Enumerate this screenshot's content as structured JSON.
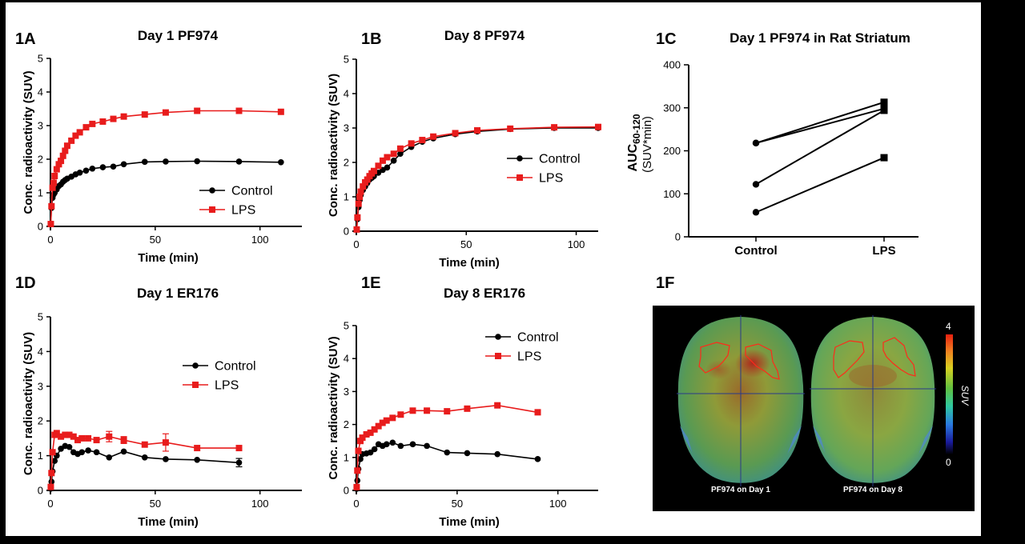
{
  "colors": {
    "control": "#000000",
    "lps": "#e81c1c"
  },
  "panels": {
    "A": {
      "id": "1A",
      "title": "Day 1 PF974"
    },
    "B": {
      "id": "1B",
      "title": "Day 8 PF974"
    },
    "C": {
      "id": "1C",
      "title": "Day 1 PF974 in Rat Striatum"
    },
    "D": {
      "id": "1D",
      "title": "Day 1 ER176"
    },
    "E": {
      "id": "1E",
      "title": "Day 8 ER176"
    },
    "F": {
      "id": "1F",
      "caption_left": "PF974 on Day 1",
      "caption_right": "PF974 on Day 8",
      "colorbar_max": "4",
      "colorbar_min": "0",
      "colorbar_label": "SUV"
    }
  },
  "chart_data": [
    {
      "panel": "1A",
      "type": "line",
      "title": "Day 1 PF974",
      "xlabel": "Time (min)",
      "ylabel": "Conc. radioactivity (SUV)",
      "xlim": [
        0,
        120
      ],
      "ylim": [
        0,
        5
      ],
      "xticks": [
        0,
        50,
        100
      ],
      "yticks": [
        0,
        1,
        2,
        3,
        4,
        5
      ],
      "legend": "center-right",
      "series": [
        {
          "name": "Control",
          "color": "#000000",
          "marker": "circle",
          "x": [
            0.17,
            0.5,
            1,
            1.5,
            2,
            3,
            4,
            5,
            6,
            7,
            8,
            10,
            12,
            14,
            17,
            20,
            25,
            30,
            35,
            45,
            55,
            70,
            90,
            110
          ],
          "y": [
            0.07,
            0.55,
            0.85,
            0.95,
            1.0,
            1.1,
            1.2,
            1.25,
            1.33,
            1.38,
            1.42,
            1.48,
            1.55,
            1.6,
            1.66,
            1.72,
            1.76,
            1.78,
            1.85,
            1.92,
            1.93,
            1.94,
            1.93,
            1.91
          ]
        },
        {
          "name": "LPS",
          "color": "#e81c1c",
          "marker": "square",
          "x": [
            0.17,
            0.5,
            1,
            1.5,
            2,
            3,
            4,
            5,
            6,
            7,
            8,
            10,
            12,
            14,
            17,
            20,
            25,
            30,
            35,
            45,
            55,
            70,
            90,
            110
          ],
          "y": [
            0.07,
            0.6,
            1.15,
            1.3,
            1.5,
            1.7,
            1.85,
            1.95,
            2.1,
            2.25,
            2.4,
            2.55,
            2.7,
            2.8,
            2.95,
            3.05,
            3.12,
            3.2,
            3.27,
            3.33,
            3.39,
            3.44,
            3.44,
            3.41
          ]
        }
      ]
    },
    {
      "panel": "1B",
      "type": "line",
      "title": "Day 8 PF974",
      "xlabel": "Time (min)",
      "ylabel": "Conc. radioactivity (SUV)",
      "xlim": [
        0,
        110
      ],
      "ylim": [
        0,
        5
      ],
      "xticks": [
        0,
        50,
        100
      ],
      "yticks": [
        0,
        1,
        2,
        3,
        4,
        5
      ],
      "legend": "center-right",
      "series": [
        {
          "name": "Control",
          "color": "#000000",
          "marker": "circle",
          "x": [
            0.17,
            0.5,
            1,
            1.5,
            2,
            3,
            4,
            5,
            6,
            7,
            8,
            10,
            12,
            14,
            17,
            20,
            25,
            30,
            35,
            45,
            55,
            70,
            90,
            110
          ],
          "y": [
            0.05,
            0.35,
            0.7,
            0.9,
            1.05,
            1.2,
            1.3,
            1.4,
            1.5,
            1.55,
            1.6,
            1.7,
            1.78,
            1.85,
            2.05,
            2.25,
            2.45,
            2.6,
            2.7,
            2.82,
            2.9,
            2.97,
            3.0,
            3.0
          ]
        },
        {
          "name": "LPS",
          "color": "#e81c1c",
          "marker": "square",
          "x": [
            0.17,
            0.5,
            1,
            1.5,
            2,
            3,
            4,
            5,
            6,
            7,
            8,
            10,
            12,
            14,
            17,
            20,
            25,
            30,
            35,
            45,
            55,
            70,
            90,
            110
          ],
          "y": [
            0.05,
            0.4,
            0.8,
            1.0,
            1.15,
            1.3,
            1.42,
            1.5,
            1.6,
            1.68,
            1.75,
            1.9,
            2.05,
            2.15,
            2.25,
            2.4,
            2.55,
            2.65,
            2.75,
            2.85,
            2.93,
            2.98,
            3.02,
            3.03
          ]
        }
      ]
    },
    {
      "panel": "1C",
      "type": "line",
      "title": "Day 1 PF974 in Rat Striatum",
      "ylabel": "AUC60-120",
      "ylabel_main": "AUC",
      "ylabel_sub": "60-120",
      "ylabel_unit": "(SUV*min)",
      "categories": [
        "Control",
        "LPS"
      ],
      "ylim": [
        0,
        400
      ],
      "yticks": [
        0,
        100,
        200,
        300,
        400
      ],
      "series": [
        {
          "values": [
            218,
            313
          ]
        },
        {
          "values": [
            218,
            298
          ]
        },
        {
          "values": [
            122,
            294
          ]
        },
        {
          "values": [
            57,
            184
          ]
        }
      ]
    },
    {
      "panel": "1D",
      "type": "line",
      "title": "Day 1 ER176",
      "xlabel": "Time (min)",
      "ylabel": "Conc. radioactivity (SUV)",
      "xlim": [
        0,
        120
      ],
      "ylim": [
        0,
        5
      ],
      "xticks": [
        0,
        50,
        100
      ],
      "yticks": [
        0,
        1,
        2,
        3,
        4,
        5
      ],
      "legend": "center-right",
      "series": [
        {
          "name": "Control",
          "color": "#000000",
          "marker": "circle",
          "x": [
            0.17,
            0.5,
            1,
            2,
            3,
            5,
            7,
            9,
            11,
            13,
            15,
            18,
            22,
            28,
            35,
            45,
            55,
            70,
            90
          ],
          "y": [
            0.05,
            0.25,
            0.55,
            0.85,
            1.0,
            1.2,
            1.28,
            1.25,
            1.1,
            1.05,
            1.1,
            1.15,
            1.1,
            0.95,
            1.12,
            0.95,
            0.9,
            0.88,
            0.8
          ],
          "err": [
            0,
            0,
            0,
            0,
            0,
            0,
            0,
            0,
            0,
            0,
            0,
            0,
            0,
            0,
            0,
            0,
            0,
            0,
            0.12
          ]
        },
        {
          "name": "LPS",
          "color": "#e81c1c",
          "marker": "square",
          "x": [
            0.17,
            0.5,
            1,
            2,
            3,
            5,
            7,
            9,
            11,
            13,
            15,
            18,
            22,
            28,
            35,
            45,
            55,
            70,
            90
          ],
          "y": [
            0.1,
            0.5,
            1.1,
            1.6,
            1.65,
            1.55,
            1.6,
            1.6,
            1.55,
            1.45,
            1.5,
            1.5,
            1.45,
            1.55,
            1.45,
            1.32,
            1.38,
            1.22,
            1.22
          ],
          "err": [
            0,
            0,
            0,
            0,
            0,
            0,
            0,
            0,
            0,
            0,
            0,
            0,
            0,
            0.15,
            0.1,
            0,
            0.25,
            0,
            0
          ]
        }
      ]
    },
    {
      "panel": "1E",
      "type": "line",
      "title": "Day 8 ER176",
      "xlabel": "Time (min)",
      "ylabel": "Conc. radioactivity (SUV)",
      "xlim": [
        0,
        120
      ],
      "ylim": [
        0,
        5
      ],
      "xticks": [
        0,
        50,
        100
      ],
      "yticks": [
        0,
        1,
        2,
        3,
        4,
        5
      ],
      "legend": "upper-right",
      "series": [
        {
          "name": "Control",
          "color": "#000000",
          "marker": "circle",
          "x": [
            0.17,
            0.5,
            1,
            2,
            3,
            5,
            7,
            9,
            11,
            13,
            15,
            18,
            22,
            28,
            35,
            45,
            55,
            70,
            90
          ],
          "y": [
            0.05,
            0.3,
            0.65,
            0.95,
            1.1,
            1.12,
            1.15,
            1.25,
            1.4,
            1.35,
            1.4,
            1.45,
            1.35,
            1.4,
            1.35,
            1.15,
            1.13,
            1.1,
            0.95
          ]
        },
        {
          "name": "LPS",
          "color": "#e81c1c",
          "marker": "square",
          "x": [
            0.17,
            0.5,
            1,
            2,
            3,
            5,
            7,
            9,
            11,
            13,
            15,
            18,
            22,
            28,
            35,
            45,
            55,
            70,
            90
          ],
          "y": [
            0.1,
            0.6,
            1.2,
            1.5,
            1.6,
            1.7,
            1.75,
            1.85,
            1.95,
            2.05,
            2.12,
            2.2,
            2.3,
            2.42,
            2.42,
            2.4,
            2.48,
            2.58,
            2.37
          ]
        }
      ]
    }
  ]
}
